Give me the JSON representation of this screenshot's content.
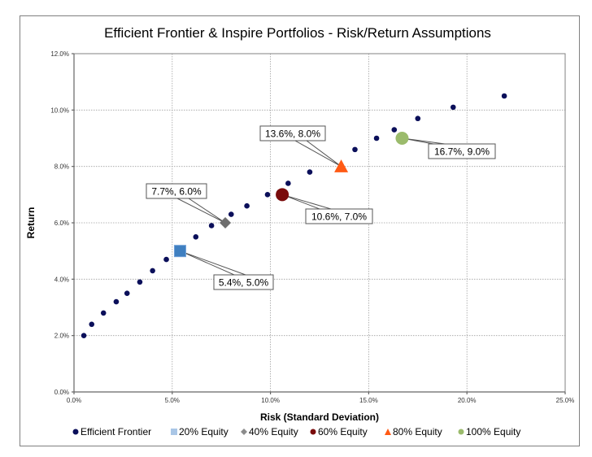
{
  "chart_data": {
    "type": "scatter",
    "title": "Efficient Frontier & Inspire Portfolios - Risk/Return Assumptions",
    "xlabel": "Risk (Standard Deviation)",
    "ylabel": "Return",
    "xlim": [
      0,
      25
    ],
    "ylim": [
      0,
      12
    ],
    "x_unit": "%",
    "y_unit": "%",
    "grid": true,
    "x_ticks": [
      "0.0%",
      "5.0%",
      "10.0%",
      "15.0%",
      "20.0%",
      "25.0%"
    ],
    "y_ticks": [
      "0.0%",
      "2.0%",
      "4.0%",
      "6.0%",
      "8.0%",
      "10.0%",
      "12.0%"
    ],
    "x_tick_values": [
      0,
      5,
      10,
      15,
      20,
      25
    ],
    "y_tick_values": [
      0,
      2,
      4,
      6,
      8,
      10,
      12
    ],
    "legend_position": "bottom",
    "series": [
      {
        "name": "Efficient Frontier",
        "marker": "circle",
        "color": "#0b0f5a",
        "points": [
          [
            0.5,
            2.0
          ],
          [
            0.9,
            2.4
          ],
          [
            1.5,
            2.8
          ],
          [
            2.15,
            3.2
          ],
          [
            2.7,
            3.5
          ],
          [
            3.35,
            3.9
          ],
          [
            4.0,
            4.3
          ],
          [
            4.7,
            4.7
          ],
          [
            6.2,
            5.5
          ],
          [
            7.0,
            5.9
          ],
          [
            8.0,
            6.3
          ],
          [
            8.8,
            6.6
          ],
          [
            9.85,
            7.0
          ],
          [
            10.9,
            7.4
          ],
          [
            12.0,
            7.8
          ],
          [
            14.3,
            8.6
          ],
          [
            15.4,
            9.0
          ],
          [
            16.3,
            9.3
          ],
          [
            17.5,
            9.7
          ],
          [
            19.3,
            10.1
          ],
          [
            21.9,
            10.5
          ]
        ]
      },
      {
        "name": "20% Equity",
        "marker": "square",
        "color": "#3f7fc0",
        "legend_color": "#a9c6e6",
        "points": [
          [
            5.4,
            5.0
          ]
        ],
        "label": "5.4%, 5.0%"
      },
      {
        "name": "40% Equity",
        "marker": "diamond",
        "color": "#6e6e6e",
        "legend_color": "#8c8c8c",
        "points": [
          [
            7.7,
            6.0
          ]
        ],
        "label": "7.7%, 6.0%"
      },
      {
        "name": "60% Equity",
        "marker": "circle",
        "color": "#7a0c0c",
        "legend_color": "#7a0c0c",
        "points": [
          [
            10.6,
            7.0
          ]
        ],
        "label": "10.6%, 7.0%"
      },
      {
        "name": "80% Equity",
        "marker": "triangle",
        "color": "#ff5a14",
        "legend_color": "#ff5a14",
        "points": [
          [
            13.6,
            8.0
          ]
        ],
        "label": "13.6%, 8.0%"
      },
      {
        "name": "100% Equity",
        "marker": "circle",
        "color": "#9bbb6c",
        "legend_color": "#9bbb6c",
        "points": [
          [
            16.7,
            9.0
          ]
        ],
        "label": "16.7%, 9.0%"
      }
    ]
  }
}
